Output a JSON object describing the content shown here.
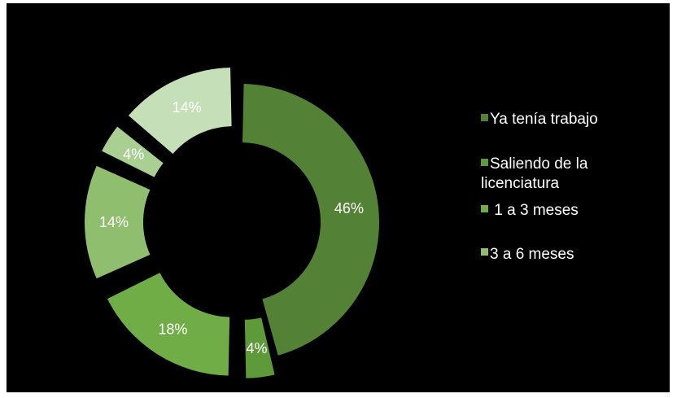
{
  "chart_data": {
    "type": "pie",
    "style": "exploded-doughnut",
    "slices": [
      {
        "label": "Ya tenía trabajo",
        "value": 46,
        "display": "46%",
        "color": "#538135"
      },
      {
        "label": "Saliendo de la licenciatura",
        "value": 4,
        "display": "4%",
        "color": "#5e9a3a"
      },
      {
        "label": "1 a 3 meses",
        "value": 18,
        "display": "18%",
        "color": "#70ad47"
      },
      {
        "label": "3 a 6 meses",
        "value": 14,
        "display": "14%",
        "color": "#8fbf6e"
      },
      {
        "label": "",
        "value": 4,
        "display": "4%",
        "color": "#a9cf92"
      },
      {
        "label": "",
        "value": 14,
        "display": "14%",
        "color": "#c5dfb8"
      }
    ],
    "legend": {
      "placement": "right",
      "entries": [
        {
          "label": "Ya tenía trabajo",
          "color": "#538135"
        },
        {
          "label_lines": [
            "Saliendo de la",
            "licenciatura"
          ],
          "color": "#5e9a3a"
        },
        {
          "label": " 1 a 3 meses",
          "color": "#70ad47"
        },
        {
          "label": "3 a 6 meses",
          "color": "#8fbf6e"
        }
      ]
    },
    "background": "#000000"
  }
}
